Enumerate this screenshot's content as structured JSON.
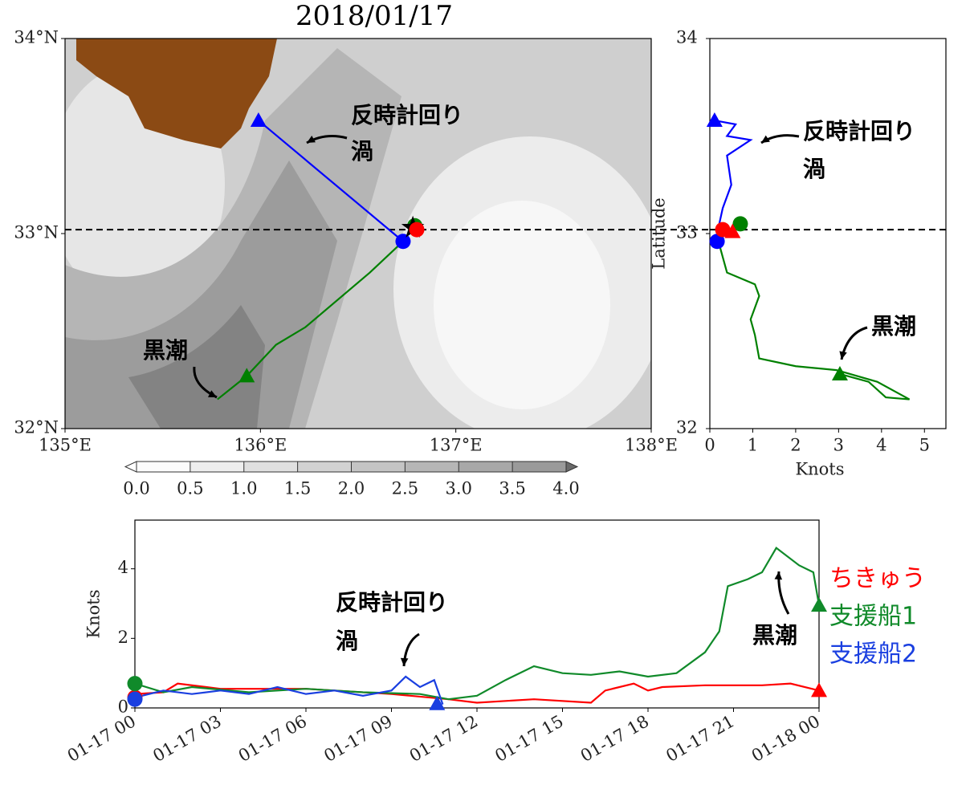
{
  "chart_data": [
    {
      "type": "map",
      "title": "2018/01/17",
      "xlim": [
        135,
        138
      ],
      "xticks": [
        {
          "value": 135,
          "label": "135°E"
        },
        {
          "value": 136,
          "label": "136°E"
        },
        {
          "value": 137,
          "label": "137°E"
        },
        {
          "value": 138,
          "label": "138°E"
        }
      ],
      "ylim": [
        32,
        34
      ],
      "yticks": [
        {
          "value": 32,
          "label": "32°N"
        },
        {
          "value": 33,
          "label": "33°N"
        },
        {
          "value": 34,
          "label": "34°N"
        }
      ],
      "hline": 33.02,
      "series": [
        {
          "color": "#0000ff",
          "x": [
            135.99,
            136.73
          ],
          "y": [
            33.58,
            32.96
          ],
          "triangle": [
            135.99,
            33.58
          ],
          "circle": [
            136.73,
            32.96
          ]
        },
        {
          "color": "#008000",
          "x": [
            135.78,
            135.93,
            136.08,
            136.23,
            136.56,
            136.73
          ],
          "y": [
            32.15,
            32.27,
            32.43,
            32.52,
            32.8,
            32.96
          ],
          "triangle": [
            135.93,
            32.27
          ],
          "circle": [
            136.79,
            33.04
          ]
        },
        {
          "color": "#ff0000",
          "circle": [
            136.8,
            33.02
          ]
        }
      ],
      "star": [
        136.78,
        33.03
      ],
      "annotations": [
        "反時計回り",
        "渦",
        "黒潮"
      ],
      "colorbar": {
        "range": [
          0,
          4
        ],
        "ticks": [
          {
            "value": 0,
            "label": "0.0"
          },
          {
            "value": 0.5,
            "label": "0.5"
          },
          {
            "value": 1,
            "label": "1.0"
          },
          {
            "value": 1.5,
            "label": "1.5"
          },
          {
            "value": 2,
            "label": "2.0"
          },
          {
            "value": 2.5,
            "label": "2.5"
          },
          {
            "value": 3,
            "label": "3.0"
          },
          {
            "value": 3.5,
            "label": "3.5"
          },
          {
            "value": 4,
            "label": "4.0"
          }
        ]
      }
    },
    {
      "type": "line",
      "xlabel": "Knots",
      "ylabel": "Latitude",
      "xlim": [
        0,
        5.5
      ],
      "xticks": [
        0,
        1,
        2,
        3,
        4,
        5
      ],
      "ylim": [
        32,
        34
      ],
      "yticks": [
        32,
        33,
        34
      ],
      "hline": 33.02,
      "series": [
        {
          "color": "#0000ff",
          "x": [
            0.11,
            0.6,
            0.4,
            0.95,
            0.4,
            0.5,
            0.3,
            0.2,
            0.2
          ],
          "y": [
            33.58,
            33.56,
            33.5,
            33.48,
            33.4,
            33.25,
            33.13,
            33.03,
            32.97
          ],
          "triangle": [
            0.11,
            33.58
          ],
          "circle": [
            0.17,
            32.96
          ]
        },
        {
          "color": "#008000",
          "x": [
            0.2,
            0.3,
            0.4,
            1.05,
            1.15,
            0.95,
            1.05,
            1.15,
            2.0,
            2.95,
            3.9,
            4.65,
            4.1,
            3.7,
            3.03
          ],
          "y": [
            32.96,
            32.88,
            32.8,
            32.74,
            32.68,
            32.56,
            32.48,
            32.36,
            32.32,
            32.3,
            32.24,
            32.15,
            32.16,
            32.24,
            32.28
          ],
          "triangle": [
            3.03,
            32.28
          ],
          "circle": [
            0.71,
            33.05
          ]
        },
        {
          "color": "#ff0000",
          "x": [
            0.3,
            0.53
          ],
          "y": [
            33.02,
            33.01
          ],
          "triangle": [
            0.53,
            33.01
          ],
          "circle": [
            0.3,
            33.02
          ]
        }
      ],
      "annotations": [
        "反時計回り",
        "渦",
        "黒潮"
      ]
    },
    {
      "type": "line",
      "ylabel": "Knots",
      "xlim": [
        0,
        24
      ],
      "xticks": [
        {
          "value": 0,
          "label": "01-17 00"
        },
        {
          "value": 3,
          "label": "01-17 03"
        },
        {
          "value": 6,
          "label": "01-17 06"
        },
        {
          "value": 9,
          "label": "01-17 09"
        },
        {
          "value": 12,
          "label": "01-17 12"
        },
        {
          "value": 15,
          "label": "01-17 15"
        },
        {
          "value": 18,
          "label": "01-17 18"
        },
        {
          "value": 21,
          "label": "01-17 21"
        },
        {
          "value": 24,
          "label": "01-18 00"
        }
      ],
      "ylim": [
        0,
        5.4
      ],
      "yticks": [
        0,
        2,
        4
      ],
      "series": [
        {
          "name": "ちきゅう",
          "color": "#ff0000",
          "x": [
            0,
            1,
            1.5,
            3,
            6,
            9,
            11,
            12,
            14,
            16,
            16.5,
            17.5,
            18,
            18.5,
            20,
            22,
            23,
            24
          ],
          "y": [
            0.4,
            0.45,
            0.7,
            0.55,
            0.55,
            0.4,
            0.25,
            0.15,
            0.25,
            0.15,
            0.5,
            0.7,
            0.5,
            0.6,
            0.65,
            0.65,
            0.7,
            0.5
          ],
          "circle": [
            0,
            0.3
          ],
          "triangle": [
            24,
            0.5
          ]
        },
        {
          "name": "支援船1",
          "color": "#108a2a",
          "x": [
            0,
            1,
            2,
            4,
            6,
            8,
            10,
            11,
            12,
            13,
            14,
            15,
            16,
            17,
            18,
            19,
            20,
            20.5,
            20.8,
            21.5,
            22,
            22.5,
            23.3,
            23.8,
            24
          ],
          "y": [
            0.7,
            0.45,
            0.6,
            0.45,
            0.55,
            0.45,
            0.4,
            0.25,
            0.35,
            0.8,
            1.2,
            1.0,
            0.95,
            1.05,
            0.9,
            1.0,
            1.6,
            2.2,
            3.5,
            3.7,
            3.9,
            4.6,
            4.1,
            3.9,
            2.95
          ],
          "circle": [
            0,
            0.7
          ],
          "triangle": [
            24,
            2.95
          ]
        },
        {
          "name": "支援船2",
          "color": "#1a3fe0",
          "x": [
            0,
            1,
            2,
            3,
            4,
            5,
            6,
            7,
            8,
            9,
            9.5,
            10,
            10.5,
            10.8
          ],
          "y": [
            0.3,
            0.5,
            0.4,
            0.5,
            0.4,
            0.6,
            0.4,
            0.5,
            0.35,
            0.5,
            0.9,
            0.6,
            0.8,
            0.1
          ],
          "circle": [
            0,
            0.25
          ],
          "triangle": [
            10.6,
            0.12
          ]
        }
      ],
      "annotations": [
        "反時計回り",
        "渦",
        "黒潮"
      ]
    }
  ]
}
